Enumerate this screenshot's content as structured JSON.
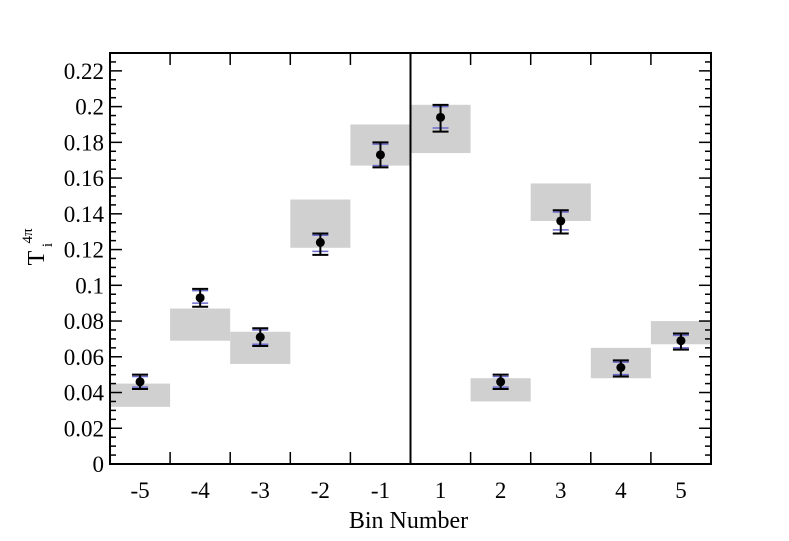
{
  "chart_data": {
    "type": "scatter",
    "title": "",
    "xlabel": "Bin Number",
    "ylabel": "T",
    "ylabel_superscript": "4π",
    "ylabel_subscript": "i",
    "categories": [
      "-5",
      "-4",
      "-3",
      "-2",
      "-1",
      "1",
      "2",
      "3",
      "4",
      "5"
    ],
    "ylim": [
      0,
      0.23
    ],
    "yticks": [
      "0",
      "0.02",
      "0.04",
      "0.06",
      "0.08",
      "0.1",
      "0.12",
      "0.14",
      "0.16",
      "0.18",
      "0.2",
      "0.22"
    ],
    "ytick_values": [
      0,
      0.02,
      0.04,
      0.06,
      0.08,
      0.1,
      0.12,
      0.14,
      0.16,
      0.18,
      0.2,
      0.22
    ],
    "divider_between": [
      "-1",
      "1"
    ],
    "grid": false,
    "legend": "none",
    "series": [
      {
        "marker": "circle",
        "color": "#000000",
        "values": [
          0.046,
          0.093,
          0.071,
          0.124,
          0.173,
          0.194,
          0.046,
          0.136,
          0.054,
          0.069
        ],
        "error_low": [
          0.042,
          0.088,
          0.066,
          0.117,
          0.166,
          0.186,
          0.042,
          0.129,
          0.049,
          0.064
        ],
        "error_high": [
          0.05,
          0.098,
          0.076,
          0.129,
          0.18,
          0.201,
          0.05,
          0.142,
          0.058,
          0.073
        ],
        "inner_error_low": [
          0.043,
          0.09,
          0.067,
          0.119,
          0.167,
          0.188,
          0.043,
          0.131,
          0.05,
          0.065
        ],
        "inner_error_high": [
          0.049,
          0.097,
          0.075,
          0.128,
          0.179,
          0.2,
          0.049,
          0.141,
          0.057,
          0.072
        ]
      }
    ],
    "bands": {
      "color": "#d0d0d0",
      "low": [
        0.032,
        0.069,
        0.056,
        0.121,
        0.167,
        0.174,
        0.035,
        0.136,
        0.048,
        0.067
      ],
      "high": [
        0.045,
        0.087,
        0.074,
        0.148,
        0.19,
        0.201,
        0.048,
        0.157,
        0.065,
        0.08
      ]
    },
    "colors": {
      "axis": "#000000",
      "inner_error": "#6a6acd"
    }
  }
}
